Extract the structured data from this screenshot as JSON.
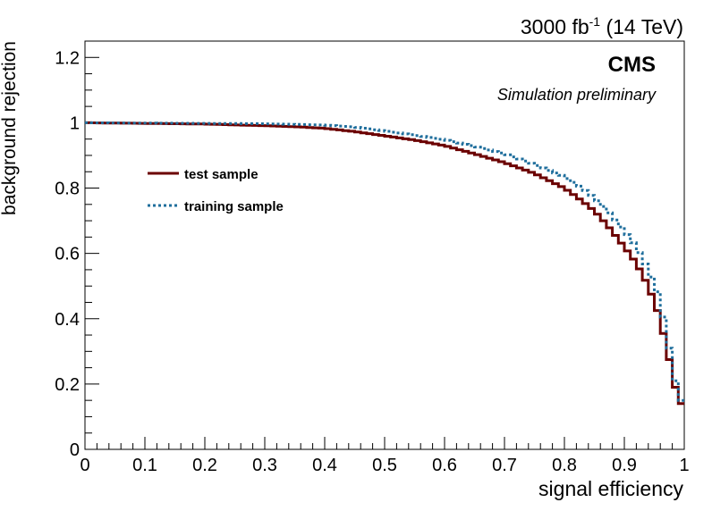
{
  "header": {
    "lumi_value": "3000 fb",
    "lumi_exp": "-1",
    "lumi_energy": " (14 TeV)"
  },
  "labels": {
    "cms": "CMS",
    "subtitle": "Simulation preliminary"
  },
  "chart_data": {
    "type": "line",
    "xlabel": "signal efficiency",
    "ylabel": "background rejection",
    "xlim": [
      0,
      1
    ],
    "ylim": [
      0,
      1.25
    ],
    "x_ticks": [
      "0",
      "0.1",
      "0.2",
      "0.3",
      "0.4",
      "0.5",
      "0.6",
      "0.7",
      "0.8",
      "0.9",
      "1"
    ],
    "y_ticks": [
      "0",
      "0.2",
      "0.4",
      "0.6",
      "0.8",
      "1",
      "1.2"
    ],
    "grid": false,
    "legend_position": "center-left",
    "series": [
      {
        "name": "test sample",
        "color": "#6b0000",
        "style": "solid",
        "step_width": 0.01,
        "x": [
          0,
          0.1,
          0.2,
          0.3,
          0.35,
          0.4,
          0.45,
          0.5,
          0.55,
          0.6,
          0.65,
          0.7,
          0.75,
          0.8,
          0.83,
          0.85,
          0.87,
          0.9,
          0.92,
          0.94,
          0.96,
          0.97,
          0.98,
          0.99,
          1.0
        ],
        "y": [
          1.0,
          0.998,
          0.996,
          0.991,
          0.988,
          0.983,
          0.973,
          0.96,
          0.947,
          0.93,
          0.905,
          0.878,
          0.845,
          0.8,
          0.76,
          0.73,
          0.69,
          0.62,
          0.57,
          0.5,
          0.4,
          0.31,
          0.24,
          0.14,
          0.14
        ]
      },
      {
        "name": "training sample",
        "color": "#1f6e9c",
        "style": "dotted",
        "step_width": 0.01,
        "x": [
          0,
          0.1,
          0.2,
          0.3,
          0.35,
          0.4,
          0.45,
          0.5,
          0.55,
          0.6,
          0.65,
          0.7,
          0.75,
          0.8,
          0.83,
          0.85,
          0.87,
          0.9,
          0.92,
          0.94,
          0.96,
          0.97,
          0.98,
          0.99,
          1.0
        ],
        "y": [
          1.0,
          0.999,
          0.998,
          0.997,
          0.995,
          0.993,
          0.987,
          0.975,
          0.962,
          0.948,
          0.928,
          0.905,
          0.873,
          0.835,
          0.8,
          0.77,
          0.735,
          0.67,
          0.62,
          0.55,
          0.46,
          0.35,
          0.27,
          0.15,
          0.15
        ]
      }
    ]
  }
}
